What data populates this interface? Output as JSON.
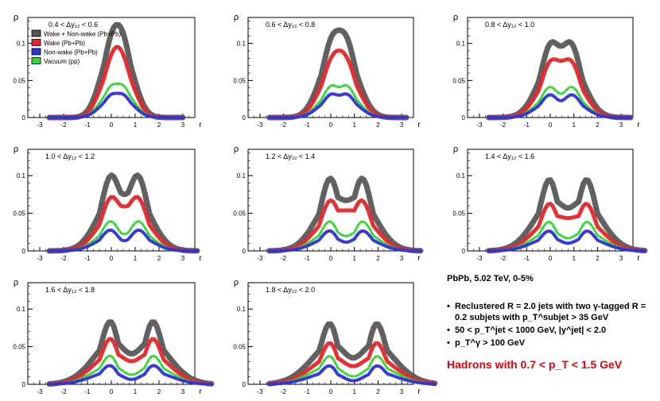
{
  "chart_data": {
    "type": "line",
    "common": {
      "ylabel": "ρ",
      "xlabel": "r",
      "xlim": [
        -3.5,
        3.5
      ],
      "ylim": [
        0,
        0.135
      ],
      "xticks": [
        "-3",
        "-2",
        "-1",
        "0",
        "1",
        "2",
        "3"
      ],
      "yticks": [
        "0",
        "0.05",
        "0.1"
      ]
    },
    "legend": [
      {
        "label": "Wake + Non-wake (Pb+Pb)",
        "color": "#555555"
      },
      {
        "label": "Wake (Pb+Pb)",
        "color": "#e8262b"
      },
      {
        "label": "Non-wake (Pb+Pb)",
        "color": "#2e33dd"
      },
      {
        "label": "Vacuum (pp)",
        "color": "#2fdd2f"
      }
    ],
    "series_names": [
      "Wake + Non-wake (Pb+Pb)",
      "Wake (Pb+Pb)",
      "Non-wake (Pb+Pb)",
      "Vacuum (pp)"
    ],
    "panels": [
      {
        "title": "0.4 <  Δy₁₂ < 0.6",
        "peak1": 0,
        "peak2": 0.5,
        "values": [
          0.115,
          0.085,
          0.033,
          0.046
        ],
        "dip": [
          0.95,
          1,
          0.78,
          0.78
        ]
      },
      {
        "title": "0.6 <  Δy₁₂ < 0.8",
        "peak1": 0,
        "peak2": 0.7,
        "values": [
          0.108,
          0.08,
          0.033,
          0.045
        ],
        "dip": [
          0.96,
          1,
          0.78,
          0.78
        ]
      },
      {
        "title": "0.8 <  Δy₁₂ < 1.0",
        "peak1": 0,
        "peak2": 0.9,
        "values": [
          0.102,
          0.077,
          0.033,
          0.044
        ],
        "dip": [
          0.92,
          0.97,
          0.66,
          0.7
        ]
      },
      {
        "title": "1.0 <  Δy₁₂ < 1.2",
        "peak1": 0,
        "peak2": 1.1,
        "values": [
          0.103,
          0.072,
          0.03,
          0.042
        ],
        "dip": [
          0.88,
          0.97,
          0.6,
          0.68
        ]
      },
      {
        "title": "1.2 <  Δy₁₂ < 1.4",
        "peak1": 0,
        "peak2": 1.3,
        "values": [
          0.1,
          0.068,
          0.029,
          0.042
        ],
        "dip": [
          0.82,
          0.94,
          0.55,
          0.62
        ]
      },
      {
        "title": "1.4 <  Δy₁₂ < 1.6",
        "peak1": 0,
        "peak2": 1.5,
        "values": [
          0.1,
          0.065,
          0.029,
          0.042
        ],
        "dip": [
          0.72,
          0.82,
          0.5,
          0.55
        ]
      },
      {
        "title": "1.6 <  Δy₁₂ < 1.8",
        "peak1": 0,
        "peak2": 1.7,
        "values": [
          0.09,
          0.065,
          0.028,
          0.042
        ],
        "dip": [
          0.6,
          0.62,
          0.38,
          0.45
        ]
      },
      {
        "title": "1.8 <  Δy₁₂ < 2.0",
        "peak1": 0,
        "peak2": 1.9,
        "values": [
          0.088,
          0.06,
          0.028,
          0.042
        ],
        "dip": [
          0.55,
          0.55,
          0.32,
          0.4
        ]
      }
    ]
  },
  "info": {
    "header": "PbPb, 5.02 TeV, 0-5%",
    "bullets": [
      "Reclustered R = 2.0 jets with two   γ-tagged  R = 0.2 subjets with p_T^subjet > 35 GeV",
      "50 < p_T^jet < 1000 GeV, |y^jet| < 2.0",
      "p_T^γ > 100 GeV"
    ],
    "highlight": "Hadrons with 0.7 < p_T < 1.5 GeV",
    "highlight_color": "#e8000b"
  }
}
